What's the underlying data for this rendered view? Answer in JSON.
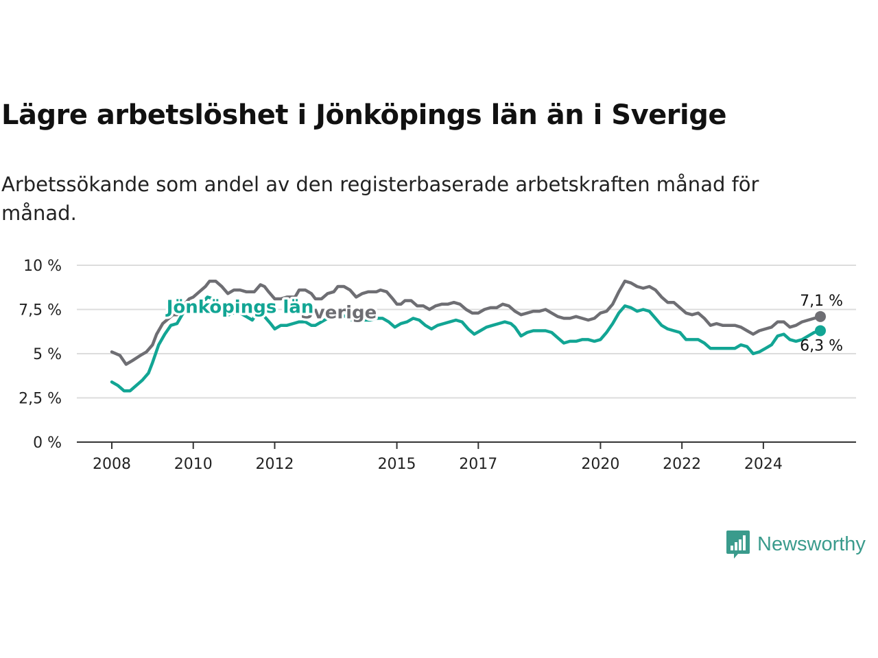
{
  "title": "Lägre arbetslöshet i Jönköpings län än i Sverige",
  "subtitle": "Arbetssökande som andel av den registerbaserade arbetskraften månad för månad.",
  "brand": "Newsworthy",
  "colors": {
    "sverige": "#6e6e73",
    "jonkoping": "#12a594",
    "grid": "#dcdcdc",
    "axis": "#333333",
    "brand": "#3a9b8c"
  },
  "icons": {
    "brand_logo": "bar-chart-speech-bubble-icon"
  },
  "chart_data": {
    "type": "line",
    "ylim": [
      0,
      10
    ],
    "xlim": [
      2008.0,
      2025.4
    ],
    "y_ticks": [
      {
        "value": 0,
        "label": "0 %"
      },
      {
        "value": 2.5,
        "label": "2,5 %"
      },
      {
        "value": 5,
        "label": "5 %"
      },
      {
        "value": 7.5,
        "label": "7,5 %"
      },
      {
        "value": 10,
        "label": "10 %"
      }
    ],
    "x_ticks": [
      {
        "value": 2008,
        "label": "2008"
      },
      {
        "value": 2010,
        "label": "2010"
      },
      {
        "value": 2012,
        "label": "2012"
      },
      {
        "value": 2015,
        "label": "2015"
      },
      {
        "value": 2017,
        "label": "2017"
      },
      {
        "value": 2020,
        "label": "2020"
      },
      {
        "value": 2022,
        "label": "2022"
      },
      {
        "value": 2024,
        "label": "2024"
      }
    ],
    "grid": true,
    "series": [
      {
        "name": "Sverige",
        "color": "#6e6e73",
        "end_label": "7,1 %",
        "label_at": [
          2013.57,
          7.0
        ],
        "points": [
          [
            2008.0,
            5.1
          ],
          [
            2008.2,
            4.9
          ],
          [
            2008.35,
            4.4
          ],
          [
            2008.5,
            4.6
          ],
          [
            2008.7,
            4.9
          ],
          [
            2008.85,
            5.1
          ],
          [
            2009.0,
            5.5
          ],
          [
            2009.1,
            6.1
          ],
          [
            2009.25,
            6.7
          ],
          [
            2009.4,
            7.0
          ],
          [
            2009.5,
            7.2
          ],
          [
            2009.6,
            7.2
          ],
          [
            2009.75,
            7.7
          ],
          [
            2009.9,
            8.1
          ],
          [
            2010.0,
            8.2
          ],
          [
            2010.15,
            8.5
          ],
          [
            2010.3,
            8.8
          ],
          [
            2010.4,
            9.1
          ],
          [
            2010.55,
            9.1
          ],
          [
            2010.7,
            8.8
          ],
          [
            2010.85,
            8.4
          ],
          [
            2011.0,
            8.6
          ],
          [
            2011.15,
            8.6
          ],
          [
            2011.3,
            8.5
          ],
          [
            2011.5,
            8.5
          ],
          [
            2011.65,
            8.9
          ],
          [
            2011.75,
            8.8
          ],
          [
            2011.85,
            8.5
          ],
          [
            2012.0,
            8.1
          ],
          [
            2012.15,
            8.1
          ],
          [
            2012.3,
            8.2
          ],
          [
            2012.5,
            8.2
          ],
          [
            2012.6,
            8.6
          ],
          [
            2012.75,
            8.6
          ],
          [
            2012.9,
            8.4
          ],
          [
            2013.0,
            8.1
          ],
          [
            2013.15,
            8.1
          ],
          [
            2013.3,
            8.4
          ],
          [
            2013.45,
            8.5
          ],
          [
            2013.55,
            8.8
          ],
          [
            2013.7,
            8.8
          ],
          [
            2013.85,
            8.6
          ],
          [
            2014.0,
            8.2
          ],
          [
            2014.15,
            8.4
          ],
          [
            2014.3,
            8.5
          ],
          [
            2014.5,
            8.5
          ],
          [
            2014.6,
            8.6
          ],
          [
            2014.75,
            8.5
          ],
          [
            2014.9,
            8.1
          ],
          [
            2015.0,
            7.8
          ],
          [
            2015.1,
            7.8
          ],
          [
            2015.2,
            8.0
          ],
          [
            2015.35,
            8.0
          ],
          [
            2015.5,
            7.7
          ],
          [
            2015.65,
            7.7
          ],
          [
            2015.8,
            7.5
          ],
          [
            2015.95,
            7.7
          ],
          [
            2016.1,
            7.8
          ],
          [
            2016.25,
            7.8
          ],
          [
            2016.4,
            7.9
          ],
          [
            2016.55,
            7.8
          ],
          [
            2016.7,
            7.5
          ],
          [
            2016.85,
            7.3
          ],
          [
            2017.0,
            7.3
          ],
          [
            2017.15,
            7.5
          ],
          [
            2017.3,
            7.6
          ],
          [
            2017.45,
            7.6
          ],
          [
            2017.6,
            7.8
          ],
          [
            2017.75,
            7.7
          ],
          [
            2017.9,
            7.4
          ],
          [
            2018.05,
            7.2
          ],
          [
            2018.2,
            7.3
          ],
          [
            2018.35,
            7.4
          ],
          [
            2018.5,
            7.4
          ],
          [
            2018.65,
            7.5
          ],
          [
            2018.8,
            7.3
          ],
          [
            2018.95,
            7.1
          ],
          [
            2019.1,
            7.0
          ],
          [
            2019.25,
            7.0
          ],
          [
            2019.4,
            7.1
          ],
          [
            2019.55,
            7.0
          ],
          [
            2019.7,
            6.9
          ],
          [
            2019.85,
            7.0
          ],
          [
            2020.0,
            7.3
          ],
          [
            2020.15,
            7.4
          ],
          [
            2020.3,
            7.8
          ],
          [
            2020.45,
            8.5
          ],
          [
            2020.6,
            9.1
          ],
          [
            2020.75,
            9.0
          ],
          [
            2020.9,
            8.8
          ],
          [
            2021.05,
            8.7
          ],
          [
            2021.2,
            8.8
          ],
          [
            2021.35,
            8.6
          ],
          [
            2021.5,
            8.2
          ],
          [
            2021.65,
            7.9
          ],
          [
            2021.8,
            7.9
          ],
          [
            2021.95,
            7.6
          ],
          [
            2022.1,
            7.3
          ],
          [
            2022.25,
            7.2
          ],
          [
            2022.4,
            7.3
          ],
          [
            2022.55,
            7.0
          ],
          [
            2022.7,
            6.6
          ],
          [
            2022.85,
            6.7
          ],
          [
            2023.0,
            6.6
          ],
          [
            2023.15,
            6.6
          ],
          [
            2023.3,
            6.6
          ],
          [
            2023.45,
            6.5
          ],
          [
            2023.6,
            6.3
          ],
          [
            2023.75,
            6.1
          ],
          [
            2023.9,
            6.3
          ],
          [
            2024.05,
            6.4
          ],
          [
            2024.2,
            6.5
          ],
          [
            2024.35,
            6.8
          ],
          [
            2024.5,
            6.8
          ],
          [
            2024.65,
            6.5
          ],
          [
            2024.8,
            6.6
          ],
          [
            2024.95,
            6.8
          ],
          [
            2025.1,
            6.9
          ],
          [
            2025.25,
            7.0
          ],
          [
            2025.4,
            7.1
          ]
        ]
      },
      {
        "name": "Jönköpings län",
        "color": "#12a594",
        "end_label": "6,3 %",
        "label_at": [
          2011.15,
          7.3
        ],
        "points": [
          [
            2008.0,
            3.4
          ],
          [
            2008.15,
            3.2
          ],
          [
            2008.3,
            2.9
          ],
          [
            2008.45,
            2.9
          ],
          [
            2008.6,
            3.2
          ],
          [
            2008.75,
            3.5
          ],
          [
            2008.9,
            3.9
          ],
          [
            2009.0,
            4.5
          ],
          [
            2009.15,
            5.5
          ],
          [
            2009.3,
            6.1
          ],
          [
            2009.45,
            6.6
          ],
          [
            2009.6,
            6.7
          ],
          [
            2009.75,
            7.3
          ],
          [
            2009.9,
            7.5
          ],
          [
            2010.05,
            7.7
          ],
          [
            2010.2,
            7.8
          ],
          [
            2010.35,
            8.2
          ],
          [
            2010.5,
            8.1
          ],
          [
            2010.65,
            7.6
          ],
          [
            2010.8,
            7.1
          ],
          [
            2010.95,
            7.3
          ],
          [
            2011.05,
            7.3
          ],
          [
            2011.15,
            7.3
          ],
          [
            2011.3,
            7.1
          ],
          [
            2011.45,
            6.9
          ],
          [
            2011.6,
            7.4
          ],
          [
            2011.75,
            7.1
          ],
          [
            2011.9,
            6.7
          ],
          [
            2012.0,
            6.4
          ],
          [
            2012.15,
            6.6
          ],
          [
            2012.3,
            6.6
          ],
          [
            2012.45,
            6.7
          ],
          [
            2012.6,
            6.8
          ],
          [
            2012.75,
            6.8
          ],
          [
            2012.9,
            6.6
          ],
          [
            2013.0,
            6.6
          ],
          [
            2013.15,
            6.8
          ],
          [
            2013.3,
            7.0
          ],
          [
            2013.45,
            7.1
          ],
          [
            2013.6,
            7.2
          ],
          [
            2013.75,
            7.1
          ],
          [
            2013.9,
            6.9
          ],
          [
            2014.05,
            6.8
          ],
          [
            2014.2,
            6.9
          ],
          [
            2014.35,
            6.9
          ],
          [
            2014.5,
            7.0
          ],
          [
            2014.65,
            7.0
          ],
          [
            2014.8,
            6.8
          ],
          [
            2014.95,
            6.5
          ],
          [
            2015.1,
            6.7
          ],
          [
            2015.25,
            6.8
          ],
          [
            2015.4,
            7.0
          ],
          [
            2015.55,
            6.9
          ],
          [
            2015.7,
            6.6
          ],
          [
            2015.85,
            6.4
          ],
          [
            2016.0,
            6.6
          ],
          [
            2016.15,
            6.7
          ],
          [
            2016.3,
            6.8
          ],
          [
            2016.45,
            6.9
          ],
          [
            2016.6,
            6.8
          ],
          [
            2016.75,
            6.4
          ],
          [
            2016.9,
            6.1
          ],
          [
            2017.05,
            6.3
          ],
          [
            2017.2,
            6.5
          ],
          [
            2017.35,
            6.6
          ],
          [
            2017.5,
            6.7
          ],
          [
            2017.65,
            6.8
          ],
          [
            2017.8,
            6.7
          ],
          [
            2017.9,
            6.5
          ],
          [
            2018.05,
            6.0
          ],
          [
            2018.2,
            6.2
          ],
          [
            2018.35,
            6.3
          ],
          [
            2018.5,
            6.3
          ],
          [
            2018.65,
            6.3
          ],
          [
            2018.8,
            6.2
          ],
          [
            2018.95,
            5.9
          ],
          [
            2019.1,
            5.6
          ],
          [
            2019.25,
            5.7
          ],
          [
            2019.4,
            5.7
          ],
          [
            2019.55,
            5.8
          ],
          [
            2019.7,
            5.8
          ],
          [
            2019.85,
            5.7
          ],
          [
            2020.0,
            5.8
          ],
          [
            2020.15,
            6.2
          ],
          [
            2020.3,
            6.7
          ],
          [
            2020.45,
            7.3
          ],
          [
            2020.6,
            7.7
          ],
          [
            2020.75,
            7.6
          ],
          [
            2020.9,
            7.4
          ],
          [
            2021.05,
            7.5
          ],
          [
            2021.2,
            7.4
          ],
          [
            2021.35,
            7.0
          ],
          [
            2021.5,
            6.6
          ],
          [
            2021.65,
            6.4
          ],
          [
            2021.8,
            6.3
          ],
          [
            2021.95,
            6.2
          ],
          [
            2022.1,
            5.8
          ],
          [
            2022.25,
            5.8
          ],
          [
            2022.4,
            5.8
          ],
          [
            2022.55,
            5.6
          ],
          [
            2022.7,
            5.3
          ],
          [
            2022.85,
            5.3
          ],
          [
            2023.0,
            5.3
          ],
          [
            2023.15,
            5.3
          ],
          [
            2023.3,
            5.3
          ],
          [
            2023.45,
            5.5
          ],
          [
            2023.6,
            5.4
          ],
          [
            2023.75,
            5.0
          ],
          [
            2023.9,
            5.1
          ],
          [
            2024.05,
            5.3
          ],
          [
            2024.2,
            5.5
          ],
          [
            2024.35,
            6.0
          ],
          [
            2024.5,
            6.1
          ],
          [
            2024.65,
            5.8
          ],
          [
            2024.8,
            5.7
          ],
          [
            2024.95,
            5.8
          ],
          [
            2025.1,
            6.0
          ],
          [
            2025.25,
            6.2
          ],
          [
            2025.4,
            6.3
          ]
        ]
      }
    ]
  }
}
